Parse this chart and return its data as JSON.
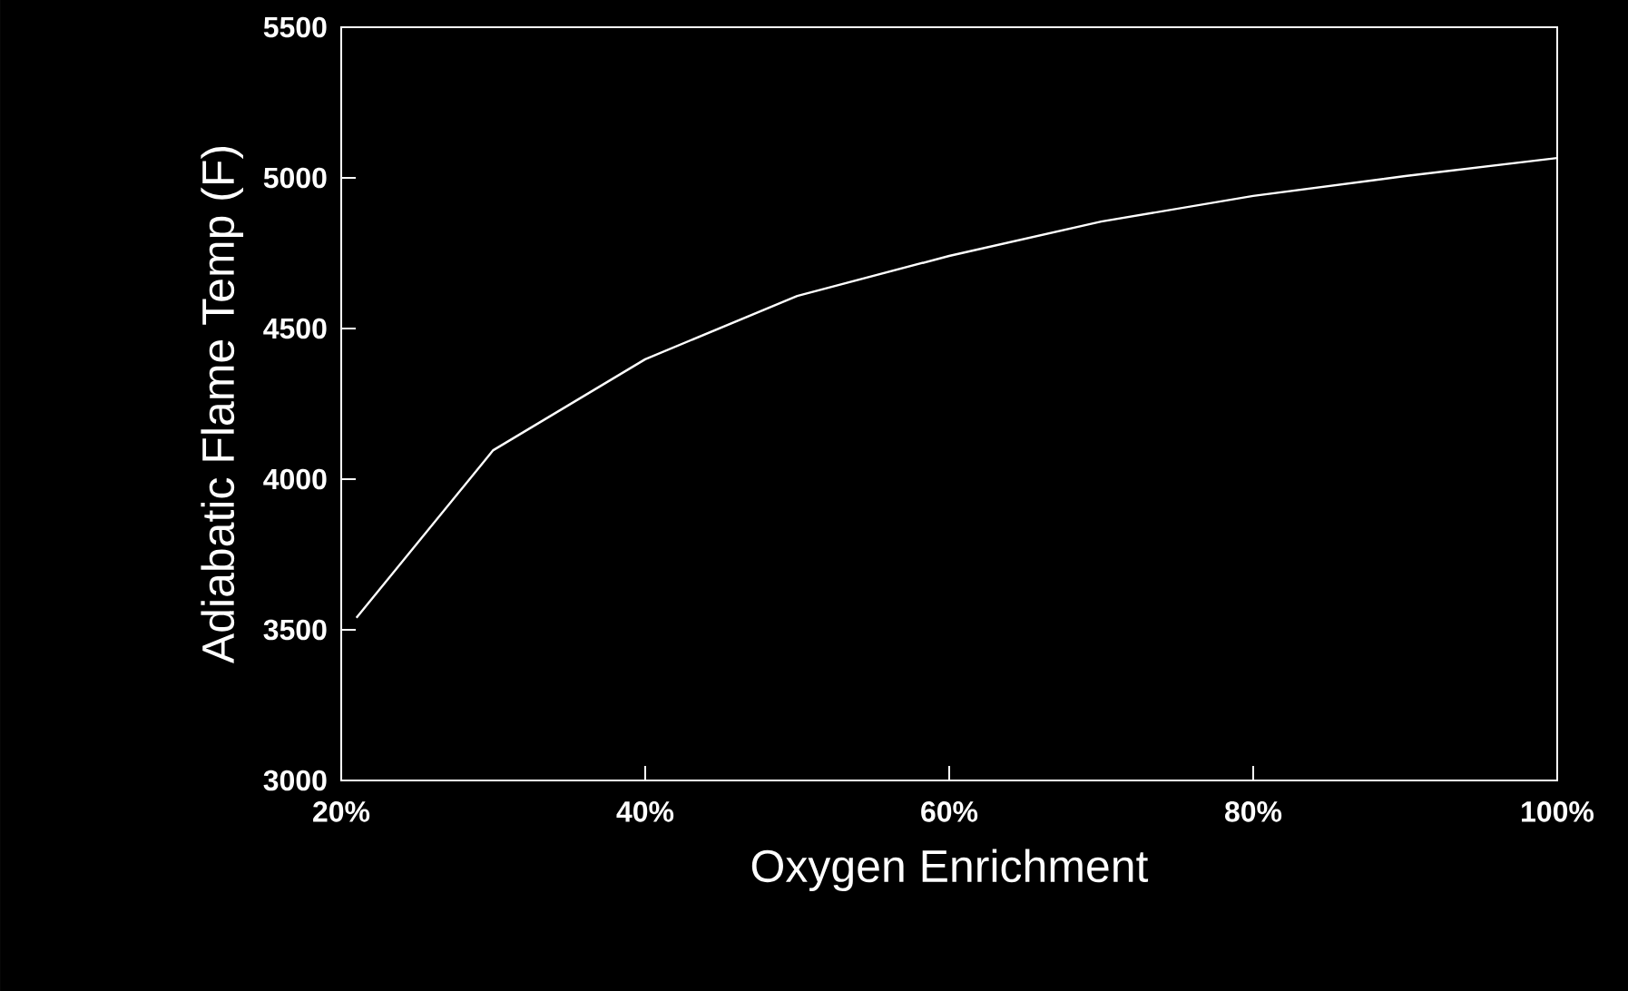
{
  "chart_data": {
    "type": "line",
    "xlabel": "Oxygen Enrichment",
    "ylabel": "Adiabatic Flame Temp (F)",
    "x": [
      21,
      30,
      40,
      50,
      60,
      70,
      80,
      90,
      100
    ],
    "series": [
      {
        "color": "#ffffff",
        "values": [
          3540,
          4096,
          4398,
          4608,
          4741,
          4855,
          4940,
          5006,
          5066
        ]
      }
    ],
    "xlim": [
      20,
      100
    ],
    "xticks": [
      {
        "value": 20,
        "label": "20%"
      },
      {
        "value": 40,
        "label": "40%"
      },
      {
        "value": 60,
        "label": "60%"
      },
      {
        "value": 80,
        "label": "80%"
      },
      {
        "value": 100,
        "label": "100%"
      }
    ],
    "ylim": [
      3000,
      5500
    ],
    "yticks": [
      3000,
      3500,
      4000,
      4500,
      5000,
      5500
    ],
    "grid": false,
    "marker": "none",
    "line_style": "solid"
  }
}
